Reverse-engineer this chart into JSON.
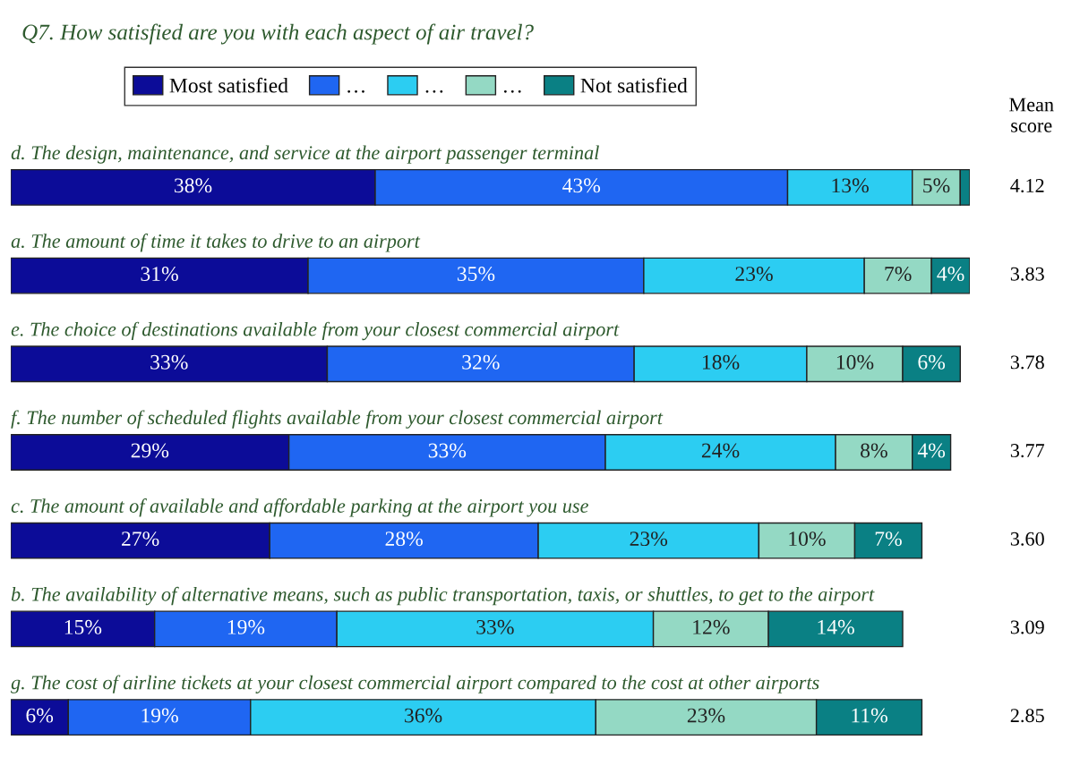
{
  "chart_data": {
    "type": "bar",
    "orientation": "horizontal",
    "stacked": true,
    "data_labels": true,
    "legend": "top",
    "title": "Q7. How satisfied are you with each aspect of air travel?",
    "categories": [
      "d. The design, maintenance, and service at the airport passenger terminal",
      "a. The amount of time it takes to drive to an airport",
      "e. The choice of destinations available from your closest commercial airport",
      "f. The number of scheduled flights available from your closest commercial airport",
      "c. The amount of available and affordable parking at the airport you use",
      "b. The availability of alternative means, such as public transportation, taxis, or shuttles, to get to the airport",
      "g. The cost of airline tickets at your closest commercial airport compared to the cost at other airports"
    ],
    "series": [
      {
        "name": "Most satisfied",
        "color": "#0c0c98",
        "values": [
          38,
          31,
          33,
          29,
          27,
          15,
          6
        ],
        "value_labels": [
          "38%",
          "31%",
          "33%",
          "29%",
          "27%",
          "15%",
          "6%"
        ]
      },
      {
        "name": "…",
        "color": "#1f66f2",
        "values": [
          43,
          35,
          32,
          33,
          28,
          19,
          19
        ],
        "value_labels": [
          "43%",
          "35%",
          "32%",
          "33%",
          "28%",
          "19%",
          "19%"
        ]
      },
      {
        "name": "…",
        "color": "#2ccdf2",
        "values": [
          13,
          23,
          18,
          24,
          23,
          33,
          36
        ],
        "value_labels": [
          "13%",
          "23%",
          "18%",
          "24%",
          "23%",
          "33%",
          "36%"
        ]
      },
      {
        "name": "…",
        "color": "#94d9c4",
        "values": [
          5,
          7,
          10,
          8,
          10,
          12,
          23
        ],
        "value_labels": [
          "5%",
          "7%",
          "10%",
          "8%",
          "10%",
          "12%",
          "23%"
        ]
      },
      {
        "name": "Not satisfied",
        "color": "#0a8084",
        "values": [
          1,
          4,
          6,
          4,
          7,
          14,
          11
        ],
        "value_labels": [
          null,
          "4%",
          "6%",
          "4%",
          "7%",
          "14%",
          "11%"
        ]
      }
    ],
    "annotations": [
      "Mean score",
      "4.12",
      "3.83",
      "3.78",
      "3.77",
      "3.60",
      "3.09",
      "2.85"
    ]
  }
}
